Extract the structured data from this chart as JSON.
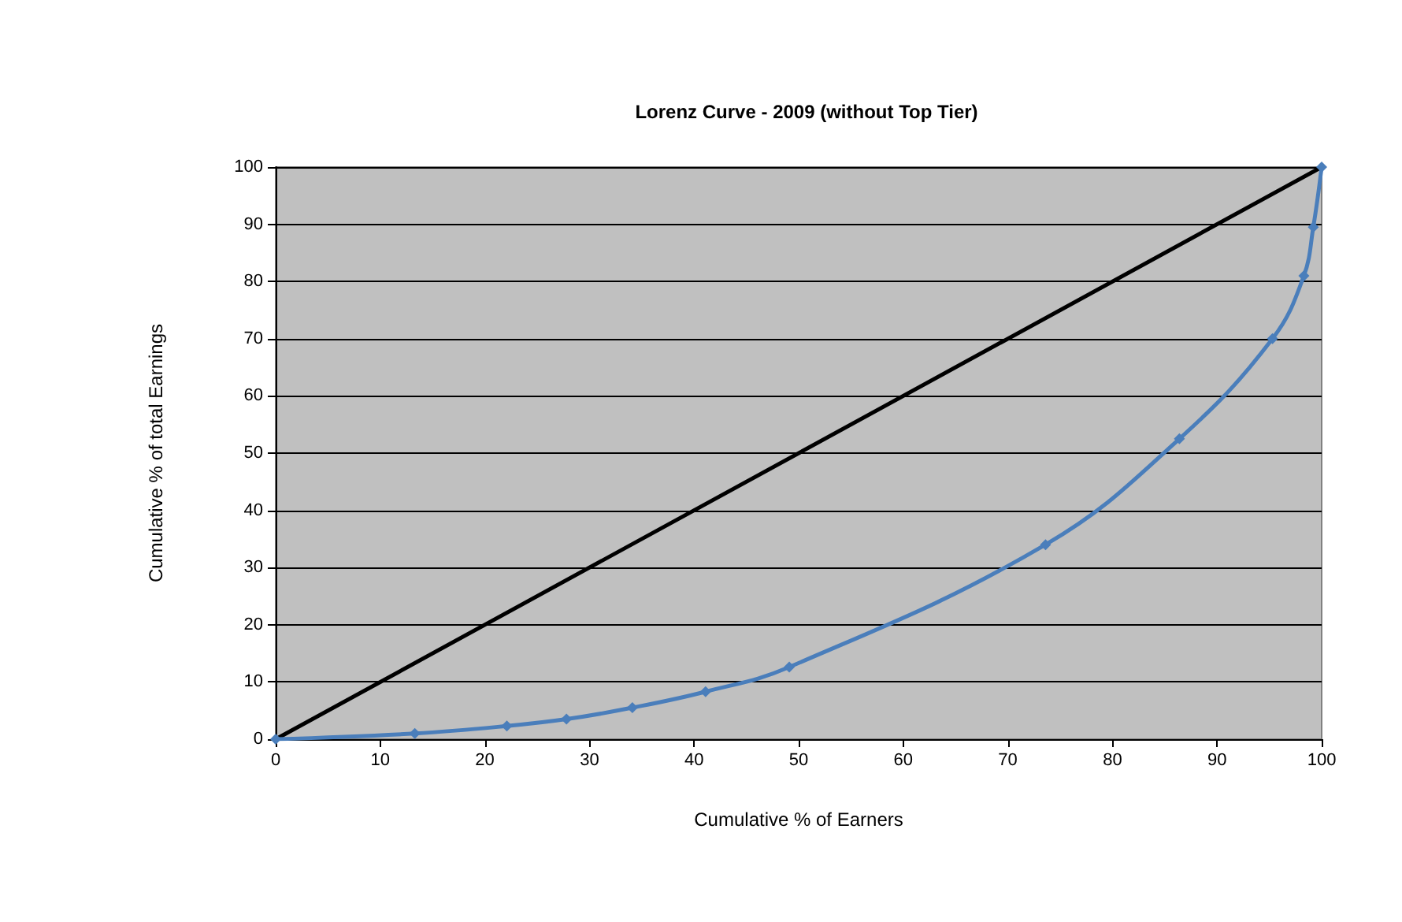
{
  "chart_data": {
    "type": "line",
    "title": "Lorenz Curve - 2009 (without Top Tier)",
    "xlabel": "Cumulative % of Earners",
    "ylabel": "Cumulative % of total Earnings",
    "series": [
      {
        "color": "#4a7ebb",
        "marker": "diamond",
        "x": [
          0,
          13.3,
          22.1,
          27.8,
          34.1,
          41.1,
          49.1,
          73.6,
          86.4,
          95.3,
          98.3,
          99.2,
          100
        ],
        "values": [
          0,
          1,
          2.3,
          3.5,
          5.5,
          8.3,
          12.6,
          34,
          52.5,
          70,
          81,
          89.5,
          100
        ]
      },
      {
        "color": "#000000",
        "marker": "none",
        "x": [
          0,
          100
        ],
        "values": [
          0,
          100
        ]
      }
    ],
    "xlim": [
      0,
      100
    ],
    "xticks": [
      0,
      10,
      20,
      30,
      40,
      50,
      60,
      70,
      80,
      90,
      100
    ],
    "ylim": [
      0,
      100
    ],
    "yticks": [
      0,
      10,
      20,
      30,
      40,
      50,
      60,
      70,
      80,
      90,
      100
    ],
    "grid": "y"
  }
}
